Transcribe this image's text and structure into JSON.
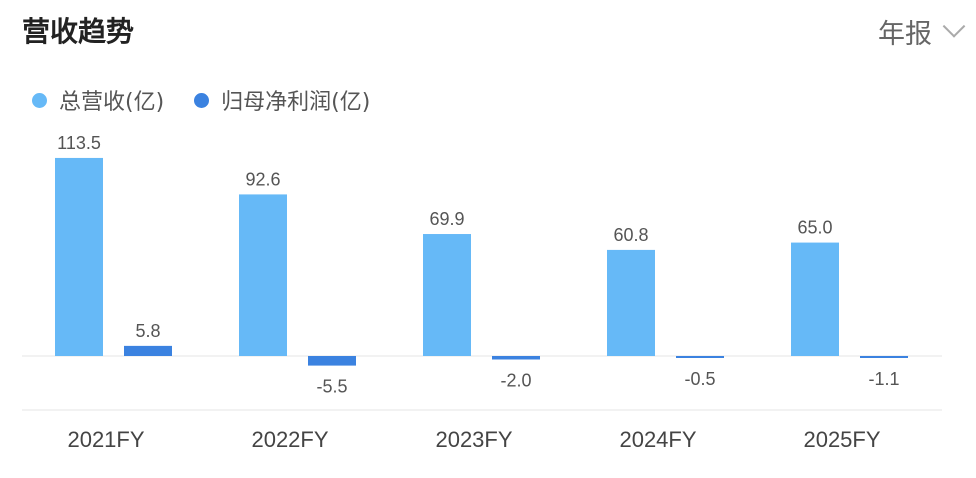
{
  "header": {
    "title": "营收趋势",
    "period": "年报"
  },
  "colors": {
    "revenue": "#66b9f7",
    "profit": "#3b82e0"
  },
  "chart_data": {
    "type": "bar",
    "categories": [
      "2021FY",
      "2022FY",
      "2023FY",
      "2024FY",
      "2025FY"
    ],
    "series": [
      {
        "name": "总营收(亿)",
        "values": [
          113.5,
          92.6,
          69.9,
          60.8,
          65.0
        ],
        "labels": [
          "113.5",
          "92.6",
          "69.9",
          "60.8",
          "65.0"
        ]
      },
      {
        "name": "归母净利润(亿)",
        "values": [
          5.8,
          -5.5,
          -2.0,
          -0.5,
          -1.1
        ],
        "labels": [
          "5.8",
          "-5.5",
          "-2.0",
          "-0.5",
          "-1.1"
        ]
      }
    ],
    "legend": "top-left",
    "grid": false
  }
}
